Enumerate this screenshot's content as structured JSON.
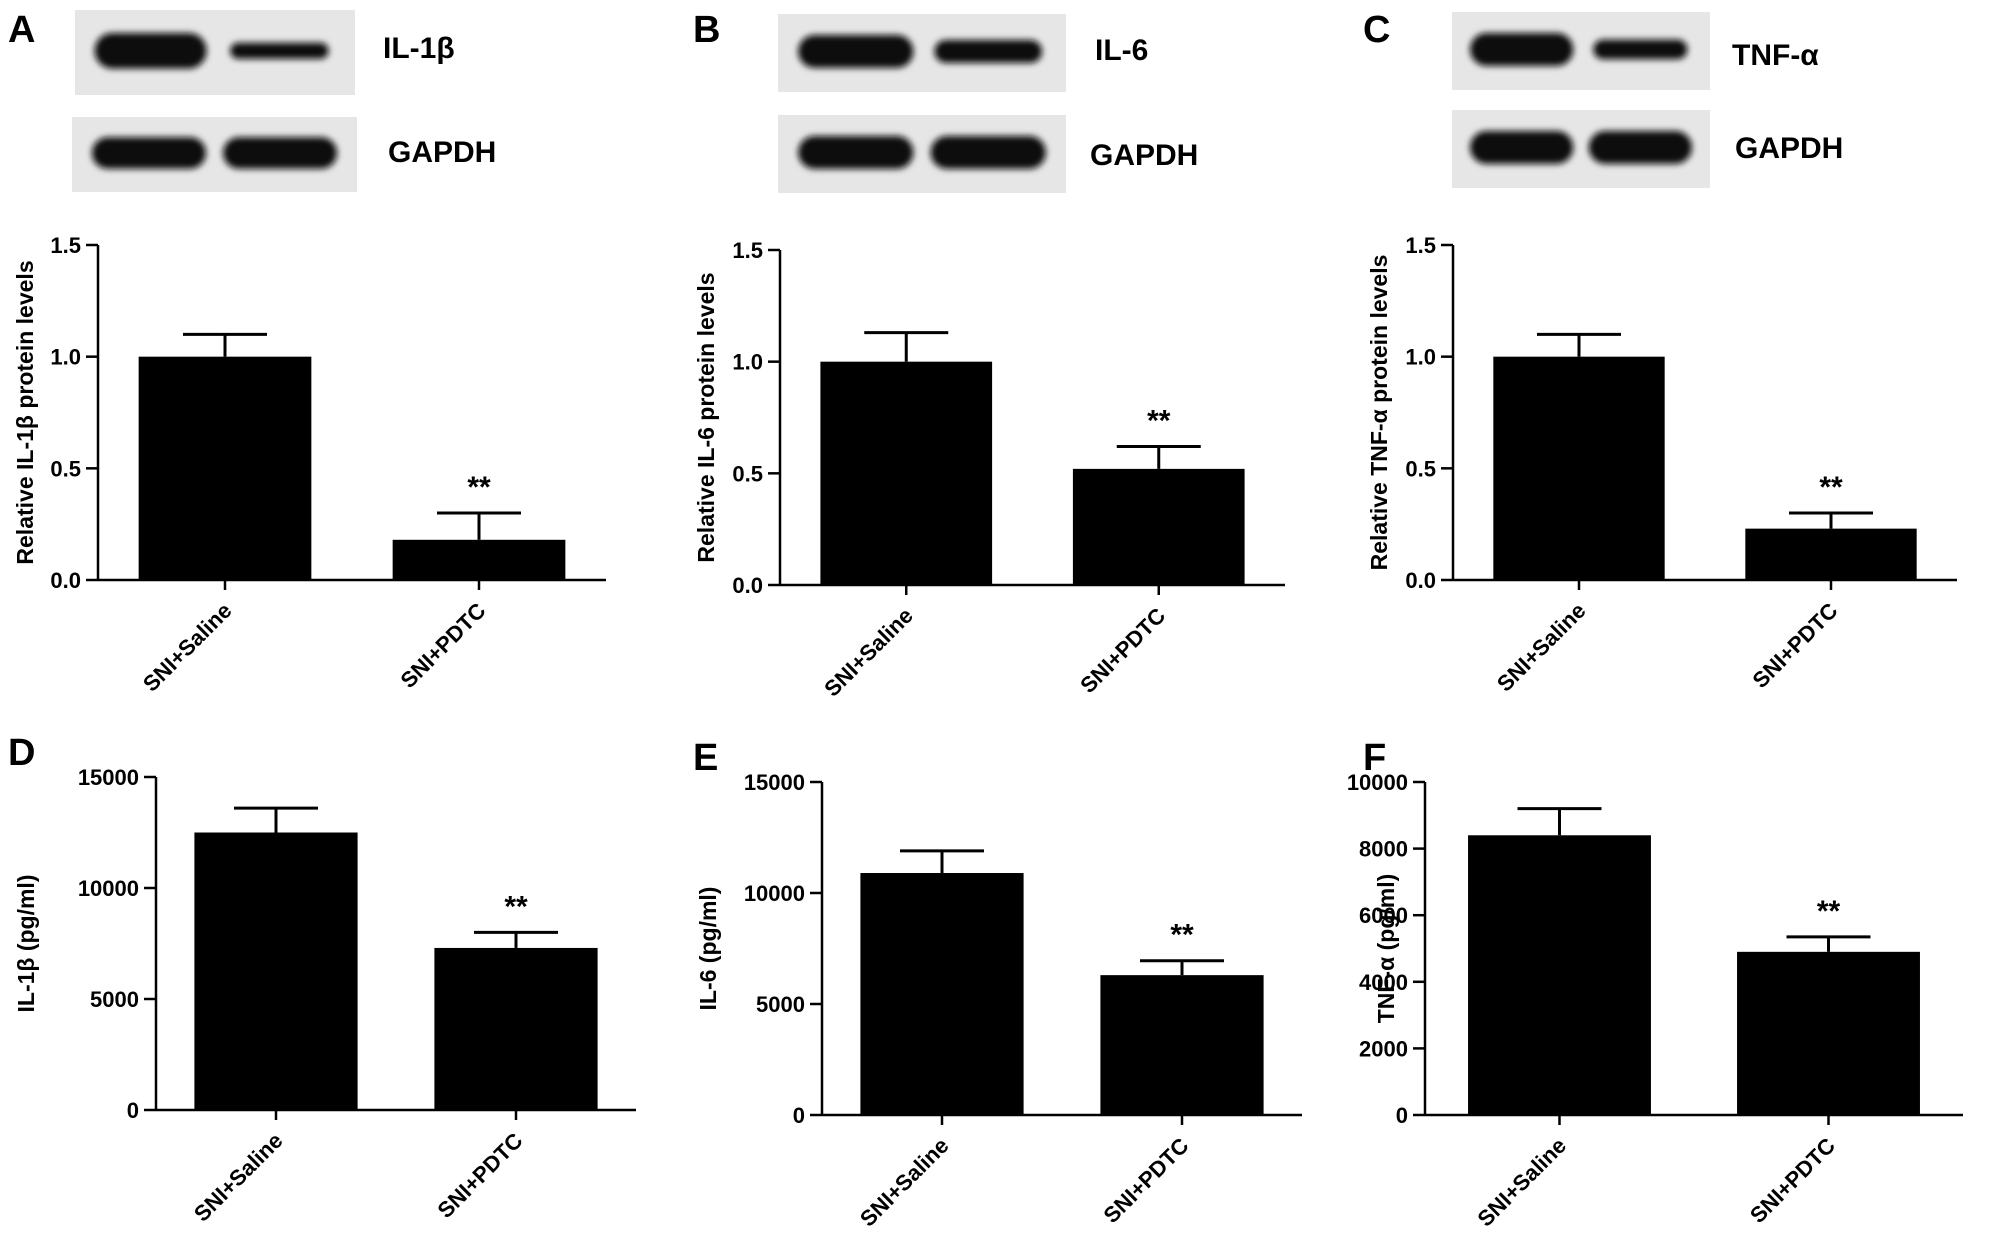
{
  "figure": {
    "blots": [
      {
        "panel": "A",
        "target_label": "IL-1β",
        "loading_label": "GAPDH",
        "relative_intensity": [
          1.0,
          0.45
        ]
      },
      {
        "panel": "B",
        "target_label": "IL-6",
        "loading_label": "GAPDH",
        "relative_intensity": [
          1.0,
          0.7
        ]
      },
      {
        "panel": "C",
        "target_label": "TNF-α",
        "loading_label": "GAPDH",
        "relative_intensity": [
          1.0,
          0.6
        ]
      }
    ],
    "bar_color": "#000000"
  },
  "chart_data": [
    {
      "panel": "A",
      "type": "bar",
      "categories": [
        "SNI+Saline",
        "SNI+PDTC"
      ],
      "values": [
        1.0,
        0.18
      ],
      "errors": [
        0.1,
        0.12
      ],
      "annotations": [
        "",
        "**"
      ],
      "ylabel": "Relative IL-1β protein levels",
      "ylim": [
        0,
        1.5
      ],
      "yticks": [
        0.0,
        0.5,
        1.0,
        1.5
      ],
      "ytick_labels": [
        "0.0",
        "0.5",
        "1.0",
        "1.5"
      ]
    },
    {
      "panel": "B",
      "type": "bar",
      "categories": [
        "SNI+Saline",
        "SNI+PDTC"
      ],
      "values": [
        1.0,
        0.52
      ],
      "errors": [
        0.13,
        0.1
      ],
      "annotations": [
        "",
        "**"
      ],
      "ylabel": "Relative IL-6 protein levels",
      "ylim": [
        0,
        1.5
      ],
      "yticks": [
        0.0,
        0.5,
        1.0,
        1.5
      ],
      "ytick_labels": [
        "0.0",
        "0.5",
        "1.0",
        "1.5"
      ]
    },
    {
      "panel": "C",
      "type": "bar",
      "categories": [
        "SNI+Saline",
        "SNI+PDTC"
      ],
      "values": [
        1.0,
        0.23
      ],
      "errors": [
        0.1,
        0.07
      ],
      "annotations": [
        "",
        "**"
      ],
      "ylabel": "Relative TNF-α protein levels",
      "ylim": [
        0,
        1.5
      ],
      "yticks": [
        0.0,
        0.5,
        1.0,
        1.5
      ],
      "ytick_labels": [
        "0.0",
        "0.5",
        "1.0",
        "1.5"
      ]
    },
    {
      "panel": "D",
      "type": "bar",
      "categories": [
        "SNI+Saline",
        "SNI+PDTC"
      ],
      "values": [
        12500,
        7300
      ],
      "errors": [
        1100,
        700
      ],
      "annotations": [
        "",
        "**"
      ],
      "ylabel": "IL-1β (pg/ml)",
      "ylim": [
        0,
        15000
      ],
      "yticks": [
        0,
        5000,
        10000,
        15000
      ],
      "ytick_labels": [
        "0",
        "5000",
        "10000",
        "15000"
      ]
    },
    {
      "panel": "E",
      "type": "bar",
      "categories": [
        "SNI+Saline",
        "SNI+PDTC"
      ],
      "values": [
        10900,
        6300
      ],
      "errors": [
        1000,
        650
      ],
      "annotations": [
        "",
        "**"
      ],
      "ylabel": "IL-6 (pg/ml)",
      "ylim": [
        0,
        15000
      ],
      "yticks": [
        0,
        5000,
        10000,
        15000
      ],
      "ytick_labels": [
        "0",
        "5000",
        "10000",
        "15000"
      ]
    },
    {
      "panel": "F",
      "type": "bar",
      "categories": [
        "SNI+Saline",
        "SNI+PDTC"
      ],
      "values": [
        8400,
        4900
      ],
      "errors": [
        800,
        450
      ],
      "annotations": [
        "",
        "**"
      ],
      "ylabel": "TNF-α (pg/ml)",
      "ylim": [
        0,
        10000
      ],
      "yticks": [
        0,
        2000,
        4000,
        6000,
        8000,
        10000
      ],
      "ytick_labels": [
        "0",
        "2000",
        "4000",
        "6000",
        "8000",
        "10000"
      ]
    }
  ]
}
